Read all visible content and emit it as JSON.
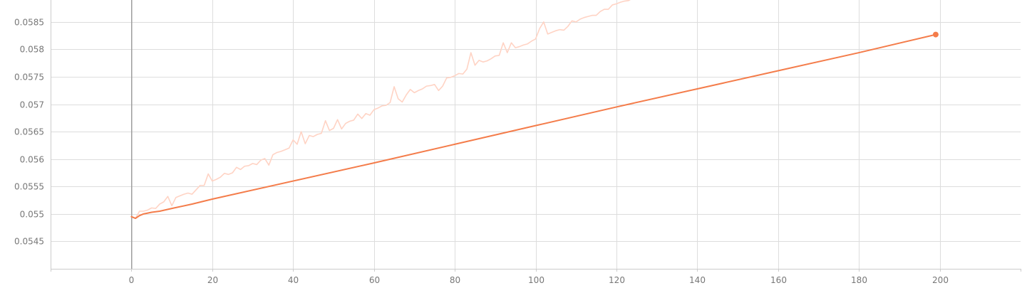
{
  "chart_data": {
    "type": "line",
    "title": "",
    "xlabel": "",
    "ylabel": "",
    "xlim": [
      -20,
      220
    ],
    "ylim": [
      0.054,
      0.0589
    ],
    "x_ticks": [
      0,
      20,
      40,
      60,
      80,
      100,
      120,
      140,
      160,
      180,
      200
    ],
    "x_tick_labels": [
      "0",
      "20",
      "40",
      "60",
      "80",
      "100",
      "120",
      "140",
      "160",
      "180",
      "200"
    ],
    "y_ticks": [
      0.0545,
      0.055,
      0.0555,
      0.056,
      0.0565,
      0.057,
      0.0575,
      0.058,
      0.0585
    ],
    "y_tick_labels": [
      "0.0545",
      "0.055",
      "0.0555",
      "0.056",
      "0.0565",
      "0.057",
      "0.0575",
      "0.058",
      "0.0585"
    ],
    "grid": true,
    "series": [
      {
        "role": "raw",
        "color": "#ffd3c4",
        "x": [
          0,
          1,
          2,
          3,
          4,
          5,
          6,
          7,
          8,
          9,
          10,
          11,
          12,
          13,
          14,
          15,
          16,
          17,
          18,
          19,
          20,
          21,
          22,
          23,
          24,
          25,
          26,
          27,
          28,
          29,
          30,
          31,
          32,
          33,
          34,
          35,
          36,
          37,
          38,
          39,
          40,
          41,
          42,
          43,
          44,
          45,
          46,
          47,
          48,
          49,
          50,
          51,
          52,
          53,
          54,
          55,
          56,
          57,
          58,
          59,
          60,
          61,
          62,
          63,
          64,
          65,
          66,
          67,
          68,
          69,
          70,
          71,
          72,
          73,
          74,
          75,
          76,
          77,
          78,
          79,
          80,
          81,
          82,
          83,
          84,
          85,
          86,
          87,
          88,
          89,
          90,
          91,
          92,
          93,
          94,
          95,
          96,
          97,
          98,
          99,
          100,
          101,
          102,
          103,
          104,
          105,
          106,
          107,
          108,
          109,
          110,
          111,
          112,
          113,
          114,
          115,
          116,
          117,
          118,
          119,
          120,
          121,
          122,
          123,
          124,
          125,
          126
        ],
        "y": [
          0.05495,
          0.05492,
          0.05505,
          0.05505,
          0.05507,
          0.05511,
          0.0551,
          0.05518,
          0.05522,
          0.05532,
          0.05515,
          0.0553,
          0.05533,
          0.05536,
          0.05538,
          0.05536,
          0.05544,
          0.05552,
          0.05552,
          0.05573,
          0.0556,
          0.05563,
          0.05567,
          0.05574,
          0.05572,
          0.05575,
          0.05585,
          0.05581,
          0.05587,
          0.05588,
          0.05592,
          0.0559,
          0.05598,
          0.05601,
          0.05589,
          0.05608,
          0.05612,
          0.05614,
          0.05617,
          0.0562,
          0.05635,
          0.05627,
          0.0565,
          0.05628,
          0.05643,
          0.05641,
          0.05645,
          0.05647,
          0.0567,
          0.05652,
          0.05656,
          0.05672,
          0.05655,
          0.05665,
          0.05669,
          0.05671,
          0.05682,
          0.05674,
          0.05683,
          0.0568,
          0.0569,
          0.05693,
          0.05697,
          0.05698,
          0.05703,
          0.05732,
          0.0571,
          0.05704,
          0.05717,
          0.05727,
          0.05721,
          0.05725,
          0.05728,
          0.05733,
          0.05734,
          0.05736,
          0.05725,
          0.05733,
          0.05748,
          0.05749,
          0.05752,
          0.05756,
          0.05755,
          0.05764,
          0.05794,
          0.05771,
          0.0578,
          0.05777,
          0.05779,
          0.05783,
          0.05788,
          0.05789,
          0.05812,
          0.05794,
          0.05812,
          0.05803,
          0.05805,
          0.05808,
          0.0581,
          0.05815,
          0.05819,
          0.05838,
          0.0585,
          0.05828,
          0.05831,
          0.05834,
          0.05836,
          0.05835,
          0.05842,
          0.05852,
          0.0585,
          0.05855,
          0.05858,
          0.0586,
          0.05862,
          0.05862,
          0.05869,
          0.05873,
          0.05873,
          0.05881,
          0.05883,
          0.05886,
          0.05888,
          0.05889,
          0.05893,
          0.05895,
          0.05898
        ]
      },
      {
        "role": "smoothed",
        "color": "#f47c4a",
        "x": [
          0,
          1,
          2,
          3,
          5,
          7,
          10,
          15,
          20,
          40,
          60,
          80,
          100,
          120,
          140,
          160,
          180,
          199
        ],
        "y": [
          0.05495,
          0.05492,
          0.05497,
          0.055,
          0.05503,
          0.05505,
          0.0551,
          0.05518,
          0.05527,
          0.0556,
          0.05593,
          0.05627,
          0.05661,
          0.05695,
          0.05728,
          0.05761,
          0.05794,
          0.05827
        ]
      }
    ]
  }
}
